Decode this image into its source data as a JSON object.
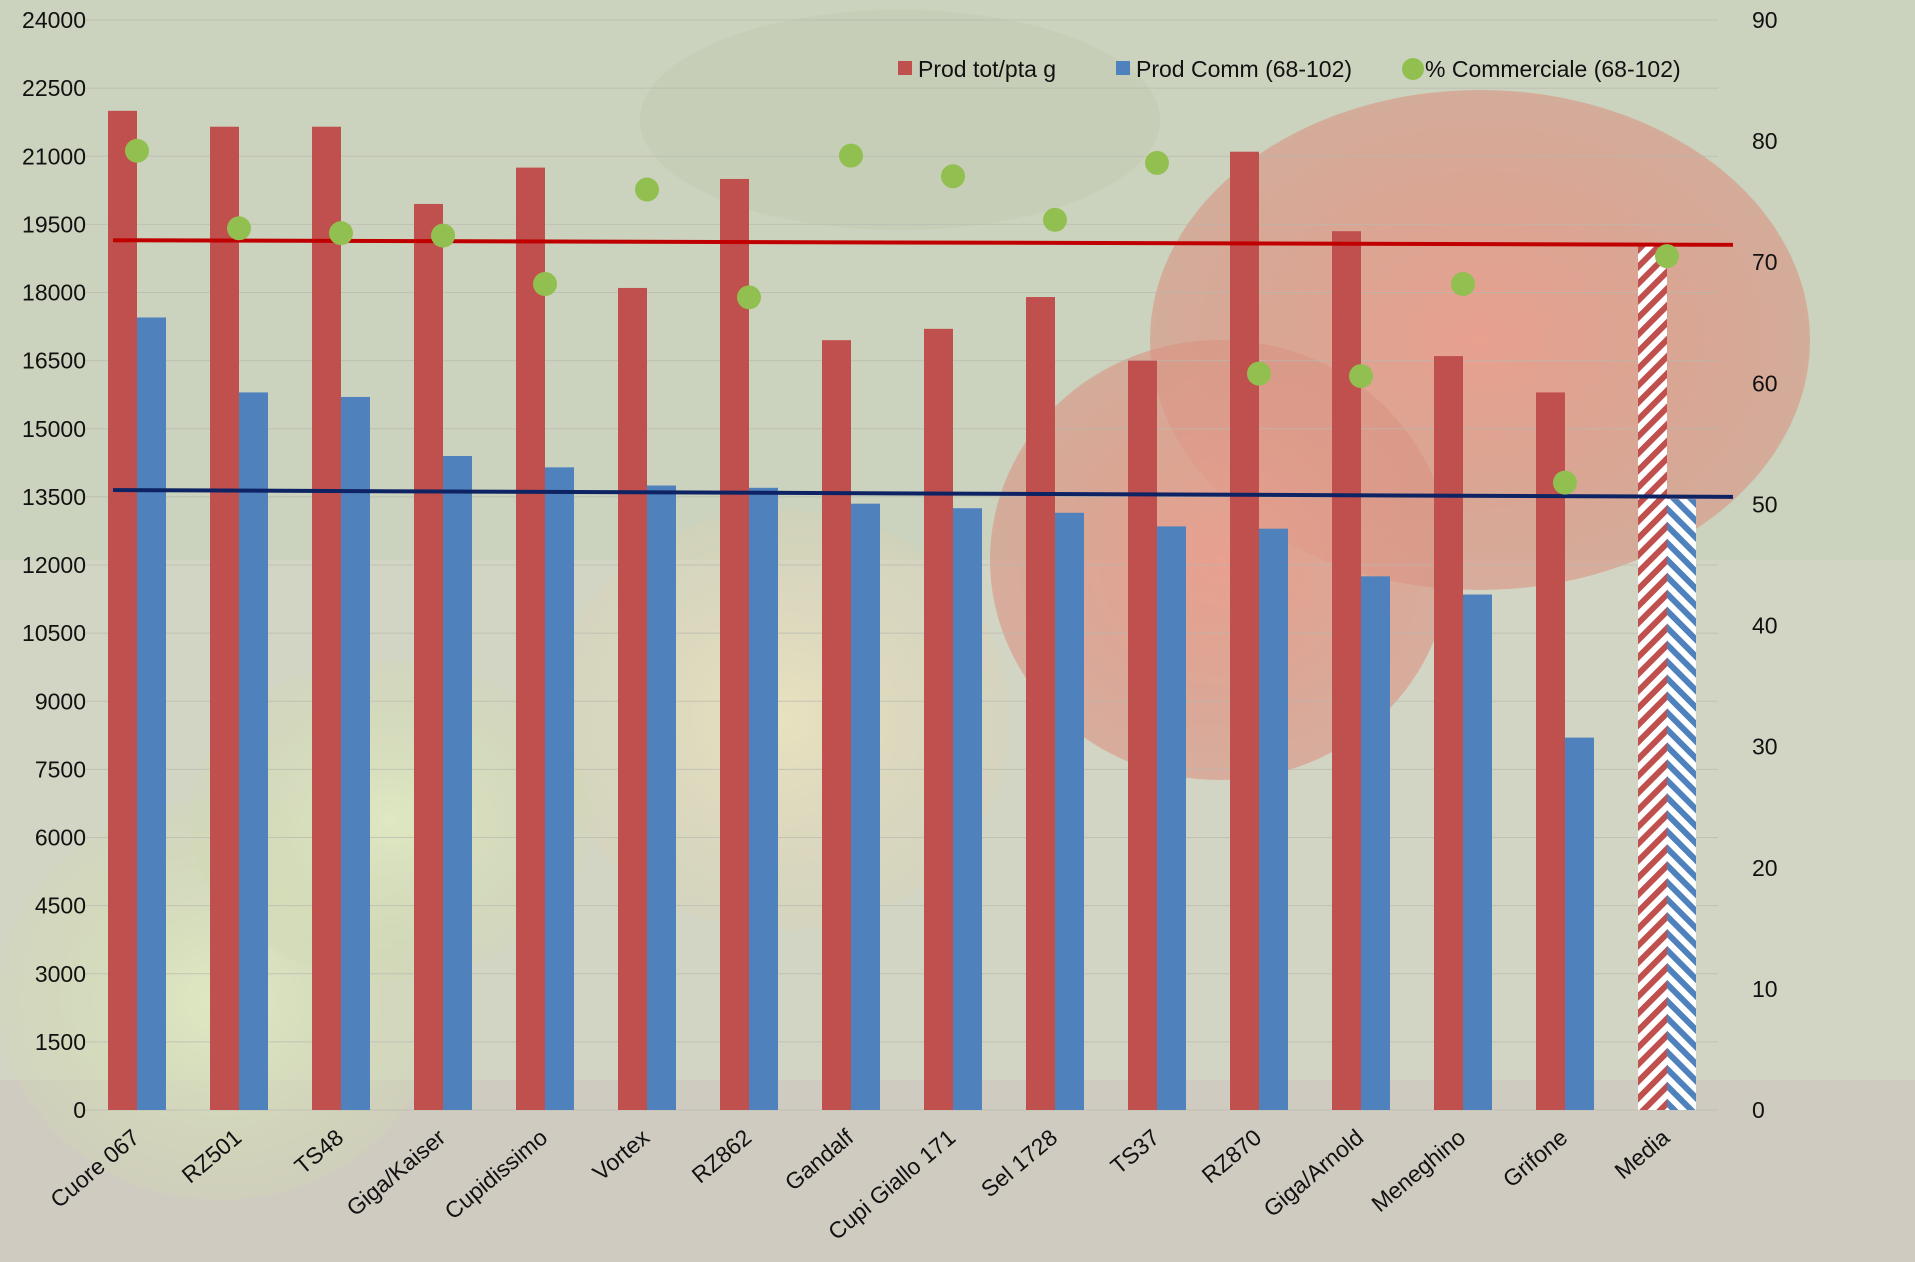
{
  "chart_data": {
    "type": "bar",
    "categories": [
      "Cuore 067",
      "RZ501",
      "TS48",
      "Giga/Kaiser",
      "Cupidissimo",
      "Vortex",
      "RZ862",
      "Gandalf",
      "Cupi Giallo 171",
      "Sel 1728",
      "TS37",
      "RZ870",
      "Giga/Arnold",
      "Meneghino",
      "Grifone",
      "Media"
    ],
    "series": [
      {
        "name": "Prod tot/pta g",
        "axis": "left",
        "kind": "bar",
        "color": "#c0504d",
        "values": [
          22000,
          21650,
          21650,
          19950,
          20750,
          18100,
          20500,
          16950,
          17200,
          17900,
          16500,
          21100,
          19350,
          16600,
          15800,
          19050
        ]
      },
      {
        "name": "Prod Comm (68-102)",
        "axis": "left",
        "kind": "bar",
        "color": "#4f81bd",
        "values": [
          17450,
          15800,
          15700,
          14400,
          14150,
          13750,
          13700,
          13350,
          13250,
          13150,
          12850,
          12800,
          11750,
          11350,
          8200,
          13450
        ]
      },
      {
        "name": "% Commerciale (68-102)",
        "axis": "right",
        "kind": "scatter",
        "color": "#92c050",
        "values": [
          79.2,
          72.8,
          72.4,
          72.2,
          68.2,
          76.0,
          67.1,
          78.8,
          77.1,
          73.5,
          78.2,
          60.8,
          60.6,
          68.2,
          51.8,
          70.5
        ]
      }
    ],
    "hatched_category": "Media",
    "reference_lines": [
      {
        "color": "#c00000",
        "axis": "left",
        "y_start": 19150,
        "y_end": 19050
      },
      {
        "color": "#0e2363",
        "axis": "left",
        "y_start": 13650,
        "y_end": 13500
      }
    ],
    "y_left": {
      "min": 0,
      "max": 24000,
      "ticks": [
        "0",
        "1500",
        "3000",
        "4500",
        "6000",
        "7500",
        "9000",
        "10500",
        "12000",
        "13500",
        "15000",
        "16500",
        "18000",
        "19500",
        "21000",
        "22500",
        "24000"
      ]
    },
    "y_right": {
      "min": 0,
      "max": 90,
      "ticks": [
        "0",
        "10",
        "20",
        "30",
        "40",
        "50",
        "60",
        "70",
        "80",
        "90"
      ]
    },
    "title": "",
    "xlabel": "",
    "ylabel": "",
    "grid": true,
    "legend_position": "top-right"
  }
}
